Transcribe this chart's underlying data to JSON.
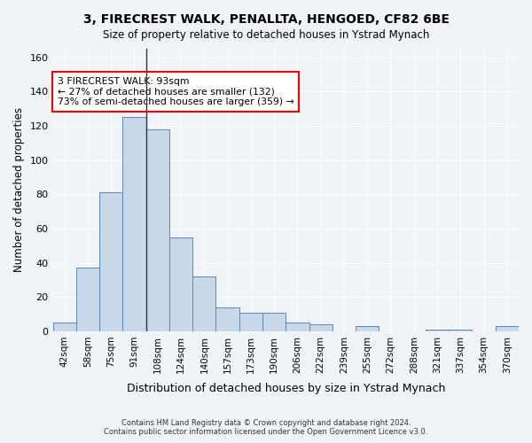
{
  "title_line1": "3, FIRECREST WALK, PENALLTA, HENGOED, CF82 6BE",
  "title_line2": "Size of property relative to detached houses in Ystrad Mynach",
  "xlabel": "Distribution of detached houses by size in Ystrad Mynach",
  "ylabel": "Number of detached properties",
  "categories": [
    "42sqm",
    "58sqm",
    "75sqm",
    "91sqm",
    "108sqm",
    "124sqm",
    "140sqm",
    "157sqm",
    "173sqm",
    "190sqm",
    "206sqm",
    "222sqm",
    "239sqm",
    "255sqm",
    "272sqm",
    "288sqm",
    "321sqm",
    "337sqm",
    "354sqm",
    "370sqm"
  ],
  "values": [
    5,
    37,
    81,
    125,
    118,
    55,
    32,
    14,
    11,
    11,
    5,
    4,
    0,
    3,
    0,
    0,
    1,
    1,
    0,
    3
  ],
  "bar_color": "#c8d8e8",
  "bar_edge_color": "#5a8ab0",
  "ylim": [
    0,
    165
  ],
  "yticks": [
    0,
    20,
    40,
    60,
    80,
    100,
    120,
    140,
    160
  ],
  "annotation_box_text": "3 FIRECREST WALK: 93sqm\n← 27% of detached houses are smaller (132)\n73% of semi-detached houses are larger (359) →",
  "annotation_bar_index": 4,
  "footer_line1": "Contains HM Land Registry data © Crown copyright and database right 2024.",
  "footer_line2": "Contains public sector information licensed under the Open Government Licence v3.0.",
  "background_color": "#f0f4f8",
  "plot_bg_color": "#f0f4f8",
  "grid_color": "#ffffff"
}
